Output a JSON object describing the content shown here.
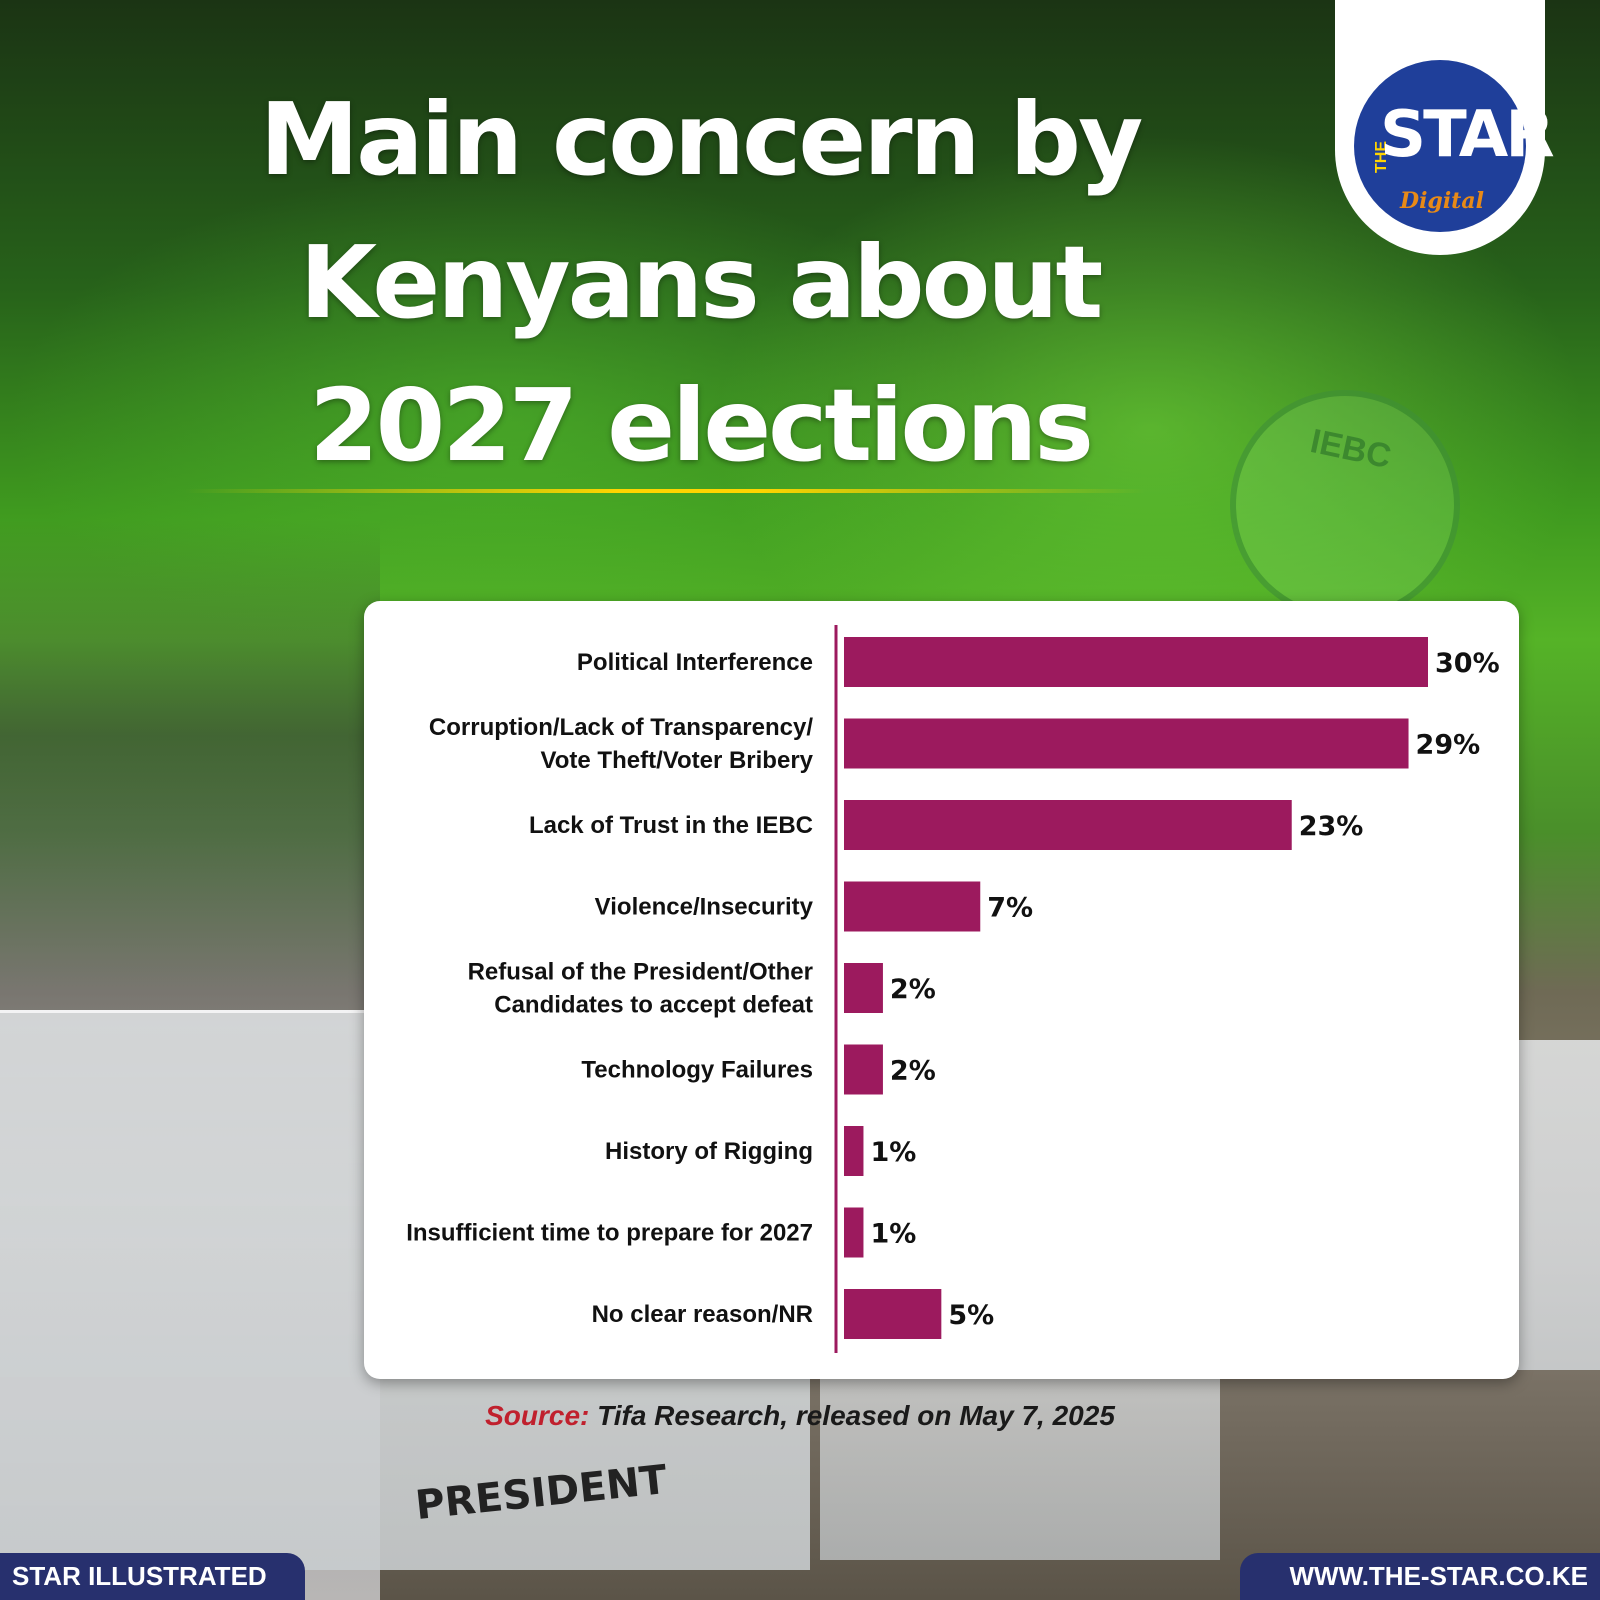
{
  "header": {
    "title_lines": [
      "Main concern by",
      "Kenyans about",
      "2027 elections"
    ]
  },
  "logo": {
    "prefix": "THE",
    "name": "STAR",
    "suffix": "Digital"
  },
  "background": {
    "ballot_label": "PRESIDENT",
    "seal_text": "IEBC"
  },
  "chart_data": {
    "type": "bar",
    "orientation": "horizontal",
    "categories": [
      [
        "Political Interference"
      ],
      [
        "Corruption/Lack of Transparency/",
        "Vote Theft/Voter Bribery"
      ],
      [
        "Lack of Trust in the IEBC"
      ],
      [
        "Violence/Insecurity"
      ],
      [
        "Refusal of the President/Other",
        "Candidates to accept defeat"
      ],
      [
        "Technology Failures"
      ],
      [
        "History of Rigging"
      ],
      [
        "Insufficient time to prepare for 2027"
      ],
      [
        "No clear reason/NR"
      ]
    ],
    "values": [
      30,
      29,
      23,
      7,
      2,
      2,
      1,
      1,
      5
    ],
    "value_labels": [
      "30%",
      "29%",
      "23%",
      "7%",
      "2%",
      "2%",
      "1%",
      "1%",
      "5%"
    ],
    "unit": "%",
    "xlim": [
      0,
      30
    ],
    "grid": false,
    "legend": "none",
    "bar_color": "#9c1a5e"
  },
  "source": {
    "prefix": "Source:",
    "text": "Tifa Research, released on May 7, 2025"
  },
  "footer": {
    "left": "STAR ILLUSTRATED",
    "right": "WWW.THE-STAR.CO.KE"
  }
}
